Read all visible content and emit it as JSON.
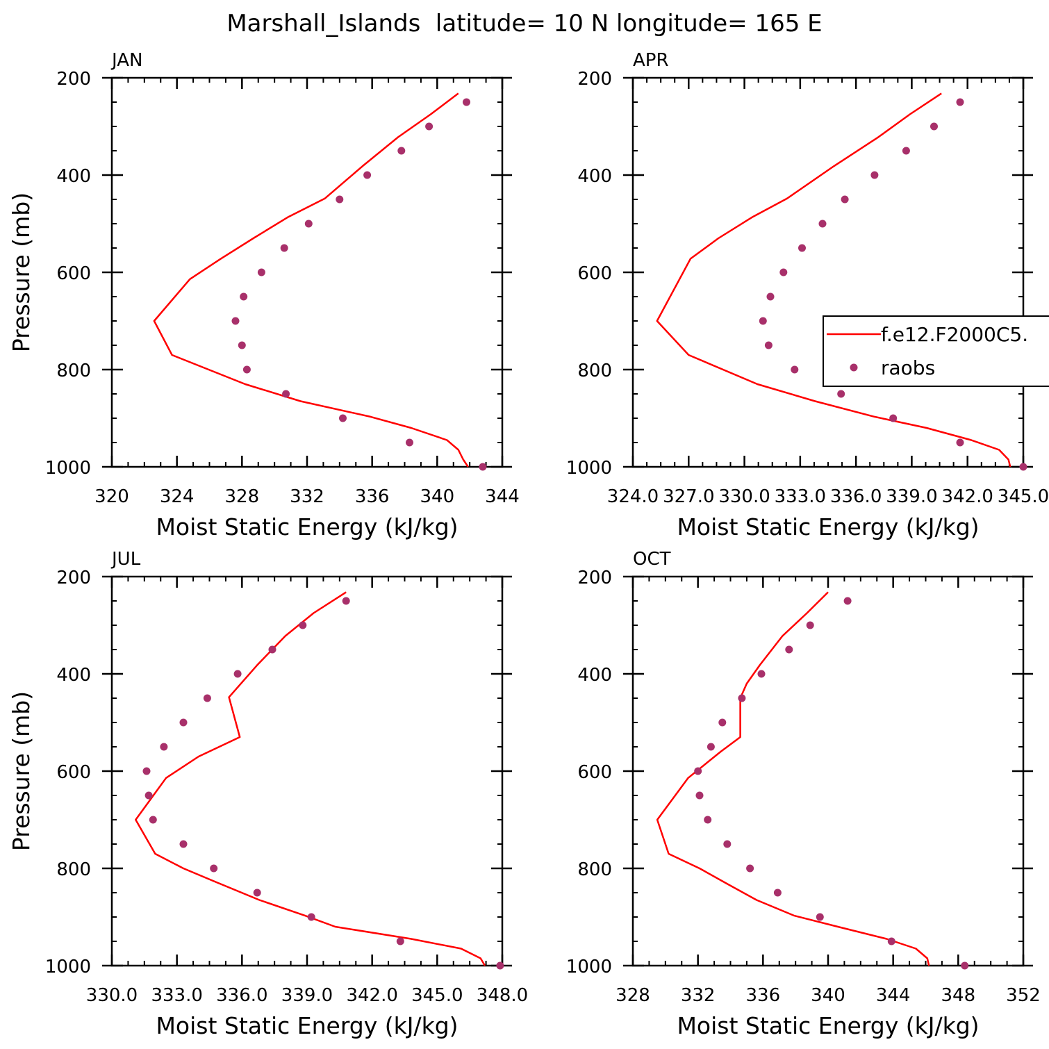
{
  "title": "Marshall_Islands  latitude= 10 N longitude= 165 E",
  "colors": {
    "model": "#ff0000",
    "obs": "#a8306a",
    "axis": "#000000"
  },
  "legend": {
    "model_label": "f.e12.F2000C5.",
    "obs_label": "raobs"
  },
  "chart_data": [
    {
      "type": "line",
      "panel": "JAN",
      "xlabel": "Moist Static Energy (kJ/kg)",
      "ylabel": "Pressure (mb)",
      "xlim": [
        320,
        344
      ],
      "ylim": [
        200,
        1000
      ],
      "xticks": [
        320,
        324,
        328,
        332,
        336,
        340,
        344
      ],
      "xtick_labels": [
        "320",
        "324",
        "328",
        "332",
        "336",
        "340",
        "344"
      ],
      "yticks": [
        200,
        400,
        600,
        800,
        1000
      ],
      "ytick_labels": [
        "200",
        "400",
        "600",
        "800",
        "1000"
      ],
      "series": [
        {
          "name": "f.e12.F2000C5.",
          "kind": "line",
          "x": [
            341.3,
            339.6,
            337.6,
            335.4,
            333.1,
            330.8,
            328.7,
            326.7,
            324.8,
            322.6,
            323.7,
            328.2,
            331.6,
            335.9,
            338.4,
            340.6,
            341.3,
            341.6,
            341.9
          ],
          "y": [
            232,
            275,
            322,
            382,
            448,
            487,
            530,
            572,
            614,
            700,
            770,
            830,
            865,
            897,
            920,
            945,
            965,
            985,
            1000
          ]
        },
        {
          "name": "raobs",
          "kind": "scatter",
          "x": [
            341.8,
            339.5,
            337.8,
            335.7,
            334.0,
            332.1,
            330.6,
            329.2,
            328.1,
            327.6,
            328.0,
            328.3,
            330.7,
            334.2,
            338.3,
            342.8
          ],
          "y": [
            250,
            300,
            350,
            400,
            450,
            500,
            550,
            600,
            650,
            700,
            750,
            800,
            850,
            900,
            950,
            1000
          ]
        }
      ]
    },
    {
      "type": "line",
      "panel": "APR",
      "xlabel": "Moist Static Energy (kJ/kg)",
      "ylabel": "",
      "xlim": [
        324,
        345
      ],
      "ylim": [
        200,
        1000
      ],
      "xticks": [
        324,
        327,
        330,
        333,
        336,
        339,
        342,
        345
      ],
      "xtick_labels": [
        "324.0",
        "327.0",
        "330.0",
        "333.0",
        "336.0",
        "339.0",
        "342.0",
        "345.0"
      ],
      "yticks": [
        200,
        400,
        600,
        800,
        1000
      ],
      "ytick_labels": [
        "200",
        "400",
        "600",
        "800",
        "1000"
      ],
      "series": [
        {
          "name": "f.e12.F2000C5.",
          "kind": "line",
          "x": [
            340.6,
            338.9,
            337.2,
            334.8,
            332.3,
            330.4,
            328.6,
            327.1,
            325.3,
            327.0,
            330.7,
            333.8,
            337.0,
            339.8,
            342.2,
            343.7,
            344.2,
            344.3
          ],
          "y": [
            232,
            275,
            322,
            382,
            448,
            487,
            530,
            572,
            700,
            770,
            830,
            865,
            897,
            920,
            945,
            965,
            985,
            1000
          ]
        },
        {
          "name": "raobs",
          "kind": "scatter",
          "x": [
            341.6,
            340.2,
            338.7,
            337.0,
            335.4,
            334.2,
            333.1,
            332.1,
            331.4,
            331.0,
            331.3,
            332.7,
            335.2,
            338.0,
            341.6,
            345.0
          ],
          "y": [
            250,
            300,
            350,
            400,
            450,
            500,
            550,
            600,
            650,
            700,
            750,
            800,
            850,
            900,
            950,
            1000
          ]
        }
      ]
    },
    {
      "type": "line",
      "panel": "JUL",
      "xlabel": "Moist Static Energy (kJ/kg)",
      "ylabel": "Pressure (mb)",
      "xlim": [
        330,
        348
      ],
      "ylim": [
        200,
        1000
      ],
      "xticks": [
        330,
        333,
        336,
        339,
        342,
        345,
        348
      ],
      "xtick_labels": [
        "330.0",
        "333.0",
        "336.0",
        "339.0",
        "342.0",
        "345.0",
        "348.0"
      ],
      "yticks": [
        200,
        400,
        600,
        800,
        1000
      ],
      "ytick_labels": [
        "200",
        "400",
        "600",
        "800",
        "1000"
      ],
      "series": [
        {
          "name": "f.e12.F2000C5.",
          "kind": "line",
          "x": [
            340.8,
            339.3,
            338.0,
            336.7,
            335.4,
            335.9,
            334.0,
            332.5,
            331.1,
            332.0,
            333.3,
            334.9,
            336.8,
            338.9,
            340.3,
            343.8,
            346.1,
            347.0,
            347.2
          ],
          "y": [
            232,
            275,
            322,
            382,
            448,
            530,
            570,
            614,
            700,
            770,
            800,
            830,
            865,
            897,
            920,
            945,
            965,
            985,
            1000
          ]
        },
        {
          "name": "raobs",
          "kind": "scatter",
          "x": [
            340.8,
            338.8,
            337.4,
            335.8,
            334.4,
            333.3,
            332.4,
            331.6,
            331.7,
            331.9,
            333.3,
            334.7,
            336.7,
            339.2,
            343.3,
            347.9
          ],
          "y": [
            250,
            300,
            350,
            400,
            450,
            500,
            550,
            600,
            650,
            700,
            750,
            800,
            850,
            900,
            950,
            1000
          ]
        }
      ]
    },
    {
      "type": "line",
      "panel": "OCT",
      "xlabel": "Moist Static Energy (kJ/kg)",
      "ylabel": "",
      "xlim": [
        328,
        352
      ],
      "ylim": [
        200,
        1000
      ],
      "xticks": [
        328,
        332,
        336,
        340,
        344,
        348,
        352
      ],
      "xtick_labels": [
        "328",
        "332",
        "336",
        "340",
        "344",
        "348",
        "352"
      ],
      "yticks": [
        200,
        400,
        600,
        800,
        1000
      ],
      "ytick_labels": [
        "200",
        "400",
        "600",
        "800",
        "1000"
      ],
      "series": [
        {
          "name": "f.e12.F2000C5.",
          "kind": "line",
          "x": [
            340.0,
            338.7,
            337.2,
            335.8,
            335.0,
            334.6,
            334.6,
            333.4,
            331.4,
            329.5,
            330.2,
            332.1,
            333.7,
            335.6,
            337.9,
            340.6,
            343.6,
            345.4,
            346.1,
            346.2
          ],
          "y": [
            232,
            275,
            322,
            382,
            420,
            450,
            530,
            560,
            614,
            700,
            770,
            800,
            830,
            865,
            897,
            920,
            945,
            965,
            985,
            1000
          ]
        },
        {
          "name": "raobs",
          "kind": "scatter",
          "x": [
            341.2,
            338.9,
            337.6,
            335.9,
            334.7,
            333.5,
            332.8,
            332.0,
            332.1,
            332.6,
            333.8,
            335.2,
            336.9,
            339.5,
            343.9,
            348.4
          ],
          "y": [
            250,
            300,
            350,
            400,
            450,
            500,
            550,
            600,
            650,
            700,
            750,
            800,
            850,
            900,
            950,
            1000
          ]
        }
      ]
    }
  ]
}
